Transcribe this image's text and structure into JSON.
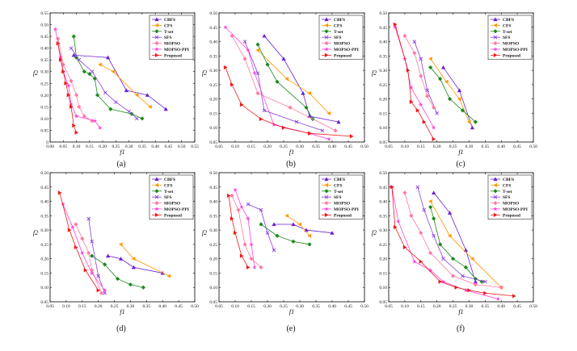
{
  "series_styles": [
    {
      "name": "CBFS",
      "color": "#6a1fd6",
      "marker": "triangle"
    },
    {
      "name": "CFS",
      "color": "#ff9900",
      "marker": "tri-left"
    },
    {
      "name": "T-set",
      "color": "#1a8a1a",
      "marker": "diamond"
    },
    {
      "name": "SFS",
      "color": "#8a3fe0",
      "marker": "x"
    },
    {
      "name": "MOPSO",
      "color": "#ff7aa0",
      "marker": "diamond"
    },
    {
      "name": "MOPSO-PPI",
      "color": "#ff44dd",
      "marker": "star"
    },
    {
      "name": "Proposed",
      "color": "#ee1a1a",
      "marker": "tri-right"
    }
  ],
  "chart_data": [
    {
      "type": "line",
      "panel_label": "(a)",
      "xlabel": "f1",
      "ylabel": "f2",
      "xlim": [
        0,
        0.55
      ],
      "ylim": [
        0,
        0.55
      ],
      "xticks": [
        "0.00",
        "0.05",
        "0.10",
        "0.15",
        "0.20",
        "0.25",
        "0.30",
        "0.35",
        "0.40",
        "0.45",
        "0.50",
        "0.55"
      ],
      "yticks": [
        "0",
        "0.05",
        "0.10",
        "0.15",
        "0.20",
        "0.25",
        "0.30",
        "0.35",
        "0.40",
        "0.45",
        "0.50",
        "0.55"
      ],
      "series": [
        {
          "name": "CBFS",
          "x": [
            0.09,
            0.22,
            0.29,
            0.37,
            0.44
          ],
          "y": [
            0.37,
            0.36,
            0.22,
            0.2,
            0.14
          ]
        },
        {
          "name": "CFS",
          "x": [
            0.19,
            0.24,
            0.33,
            0.38
          ],
          "y": [
            0.33,
            0.3,
            0.2,
            0.15
          ]
        },
        {
          "name": "T-set",
          "x": [
            0.09,
            0.1,
            0.13,
            0.15,
            0.17,
            0.18,
            0.23,
            0.31,
            0.35
          ],
          "y": [
            0.45,
            0.36,
            0.3,
            0.29,
            0.27,
            0.2,
            0.14,
            0.12,
            0.1
          ]
        },
        {
          "name": "SFS",
          "x": [
            0.08,
            0.11,
            0.16,
            0.21,
            0.25,
            0.3,
            0.33
          ],
          "y": [
            0.4,
            0.35,
            0.3,
            0.21,
            0.17,
            0.13,
            0.1
          ]
        },
        {
          "name": "MOPSO",
          "x": [
            0.03,
            0.05,
            0.08,
            0.1,
            0.11,
            0.13,
            0.16
          ],
          "y": [
            0.44,
            0.33,
            0.26,
            0.2,
            0.15,
            0.11,
            0.09
          ]
        },
        {
          "name": "MOPSO-PPI",
          "x": [
            0.02,
            0.04,
            0.05,
            0.07,
            0.08,
            0.1,
            0.17,
            0.19
          ],
          "y": [
            0.48,
            0.36,
            0.3,
            0.24,
            0.16,
            0.11,
            0.09,
            0.06
          ]
        },
        {
          "name": "Proposed",
          "x": [
            0.03,
            0.04,
            0.05,
            0.06,
            0.07,
            0.08,
            0.09,
            0.1
          ],
          "y": [
            0.42,
            0.35,
            0.3,
            0.25,
            0.2,
            0.15,
            0.07,
            0.04
          ]
        }
      ]
    },
    {
      "type": "line",
      "panel_label": "(b)",
      "xlabel": "f1",
      "ylabel": "f2",
      "xlim": [
        0.05,
        0.5
      ],
      "ylim": [
        0.05,
        0.5
      ],
      "xticks": [
        "0.05",
        "0.10",
        "0.15",
        "0.20",
        "0.25",
        "0.30",
        "0.35",
        "0.40",
        "0.45",
        "0.50"
      ],
      "yticks": [
        "0.05",
        "0.10",
        "0.15",
        "0.20",
        "0.25",
        "0.30",
        "0.35",
        "0.40",
        "0.45",
        "0.50"
      ],
      "series": [
        {
          "name": "CBFS",
          "x": [
            0.19,
            0.25,
            0.31,
            0.33,
            0.42
          ],
          "y": [
            0.42,
            0.34,
            0.22,
            0.14,
            0.12
          ]
        },
        {
          "name": "CFS",
          "x": [
            0.17,
            0.26,
            0.33,
            0.39
          ],
          "y": [
            0.37,
            0.27,
            0.22,
            0.15
          ]
        },
        {
          "name": "T-set",
          "x": [
            0.17,
            0.2,
            0.23,
            0.32,
            0.34
          ],
          "y": [
            0.39,
            0.32,
            0.26,
            0.17,
            0.13
          ]
        },
        {
          "name": "SFS",
          "x": [
            0.13,
            0.17,
            0.19,
            0.29,
            0.37
          ],
          "y": [
            0.4,
            0.29,
            0.16,
            0.12,
            0.09
          ]
        },
        {
          "name": "MOPSO",
          "x": [
            0.09,
            0.13,
            0.17,
            0.27,
            0.41
          ],
          "y": [
            0.42,
            0.34,
            0.22,
            0.17,
            0.09
          ]
        },
        {
          "name": "MOPSO-PPI",
          "x": [
            0.07,
            0.14,
            0.16,
            0.22,
            0.33,
            0.39
          ],
          "y": [
            0.45,
            0.37,
            0.29,
            0.11,
            0.08,
            0.06
          ]
        },
        {
          "name": "Proposed",
          "x": [
            0.07,
            0.09,
            0.12,
            0.18,
            0.25,
            0.33,
            0.46
          ],
          "y": [
            0.31,
            0.25,
            0.18,
            0.13,
            0.1,
            0.08,
            0.07
          ]
        }
      ]
    },
    {
      "type": "line",
      "panel_label": "(c)",
      "xlabel": "f1",
      "ylabel": "f2",
      "xlim": [
        0.05,
        0.5
      ],
      "ylim": [
        0.05,
        0.5
      ],
      "xticks": [
        "0.05",
        "0.10",
        "0.15",
        "0.20",
        "0.25",
        "0.30",
        "0.35",
        "0.40",
        "0.45",
        "0.50"
      ],
      "yticks": [
        "0.05",
        "0.10",
        "0.15",
        "0.20",
        "0.25",
        "0.30",
        "0.35",
        "0.40",
        "0.45",
        "0.50"
      ],
      "series": [
        {
          "name": "CBFS",
          "x": [
            0.22,
            0.27,
            0.31
          ],
          "y": [
            0.31,
            0.23,
            0.1
          ]
        },
        {
          "name": "CFS",
          "x": [
            0.18,
            0.23,
            0.27,
            0.3
          ],
          "y": [
            0.34,
            0.26,
            0.2,
            0.12
          ]
        },
        {
          "name": "T-set",
          "x": [
            0.18,
            0.21,
            0.24,
            0.28,
            0.32
          ],
          "y": [
            0.31,
            0.27,
            0.2,
            0.16,
            0.12
          ]
        },
        {
          "name": "SFS",
          "x": [
            0.13,
            0.15,
            0.17,
            0.2
          ],
          "y": [
            0.4,
            0.34,
            0.23,
            0.15
          ]
        },
        {
          "name": "MOPSO",
          "x": [
            0.1,
            0.13,
            0.15,
            0.17,
            0.19
          ],
          "y": [
            0.42,
            0.36,
            0.28,
            0.21,
            0.17
          ]
        },
        {
          "name": "MOPSO-PPI",
          "x": [
            0.07,
            0.1,
            0.12,
            0.15,
            0.19
          ],
          "y": [
            0.45,
            0.34,
            0.24,
            0.18,
            0.1
          ]
        },
        {
          "name": "Proposed",
          "x": [
            0.07,
            0.11,
            0.12,
            0.14,
            0.16,
            0.19
          ],
          "y": [
            0.46,
            0.3,
            0.19,
            0.16,
            0.12,
            0.06
          ]
        }
      ]
    },
    {
      "type": "line",
      "panel_label": "(d)",
      "xlabel": "f1",
      "ylabel": "f2",
      "xlim": [
        0.05,
        0.5
      ],
      "ylim": [
        0.05,
        0.5
      ],
      "xticks": [
        "0.05",
        "0.10",
        "0.15",
        "0.20",
        "0.25",
        "0.30",
        "0.35",
        "0.40",
        "0.45",
        "0.50"
      ],
      "yticks": [
        "0.05",
        "0.10",
        "0.15",
        "0.20",
        "0.25",
        "0.30",
        "0.35",
        "0.40",
        "0.45",
        "0.50"
      ],
      "series": [
        {
          "name": "CBFS",
          "x": [
            0.23,
            0.27,
            0.31,
            0.4
          ],
          "y": [
            0.21,
            0.2,
            0.17,
            0.15
          ]
        },
        {
          "name": "CFS",
          "x": [
            0.27,
            0.31,
            0.42
          ],
          "y": [
            0.25,
            0.2,
            0.14
          ]
        },
        {
          "name": "T-set",
          "x": [
            0.18,
            0.22,
            0.26,
            0.3,
            0.34
          ],
          "y": [
            0.21,
            0.18,
            0.13,
            0.11,
            0.1
          ]
        },
        {
          "name": "SFS",
          "x": [
            0.17,
            0.18,
            0.2,
            0.22
          ],
          "y": [
            0.34,
            0.26,
            0.14,
            0.08
          ]
        },
        {
          "name": "MOPSO",
          "x": [
            0.13,
            0.15,
            0.17,
            0.18,
            0.21
          ],
          "y": [
            0.32,
            0.27,
            0.22,
            0.16,
            0.08
          ]
        },
        {
          "name": "MOPSO-PPI",
          "x": [
            0.09,
            0.12,
            0.15,
            0.18,
            0.22
          ],
          "y": [
            0.39,
            0.31,
            0.22,
            0.15,
            0.09
          ]
        },
        {
          "name": "Proposed",
          "x": [
            0.08,
            0.11,
            0.13,
            0.16,
            0.2
          ],
          "y": [
            0.43,
            0.3,
            0.24,
            0.16,
            0.09
          ]
        }
      ]
    },
    {
      "type": "line",
      "panel_label": "(e)",
      "xlabel": "f1",
      "ylabel": "f2",
      "xlim": [
        0.05,
        0.5
      ],
      "ylim": [
        0.05,
        0.5
      ],
      "xticks": [
        "0.05",
        "0.10",
        "0.15",
        "0.20",
        "0.25",
        "0.30",
        "0.35",
        "0.40",
        "0.45",
        "0.50"
      ],
      "yticks": [
        "0.05",
        "0.10",
        "0.15",
        "0.20",
        "0.25",
        "0.30",
        "0.35",
        "0.40",
        "0.45",
        "0.50"
      ],
      "series": [
        {
          "name": "CBFS",
          "x": [
            0.22,
            0.28,
            0.32,
            0.4
          ],
          "y": [
            0.32,
            0.32,
            0.3,
            0.29
          ]
        },
        {
          "name": "CFS",
          "x": [
            0.26,
            0.3,
            0.33
          ],
          "y": [
            0.35,
            0.32,
            0.28
          ]
        },
        {
          "name": "T-set",
          "x": [
            0.18,
            0.23,
            0.28,
            0.33
          ],
          "y": [
            0.32,
            0.28,
            0.26,
            0.25
          ]
        },
        {
          "name": "SFS",
          "x": [
            0.14,
            0.18,
            0.2,
            0.22
          ],
          "y": [
            0.39,
            0.37,
            0.29,
            0.23
          ]
        },
        {
          "name": "MOPSO",
          "x": [
            0.09,
            0.11,
            0.13,
            0.15,
            0.18
          ],
          "y": [
            0.42,
            0.37,
            0.25,
            0.2,
            0.17
          ]
        },
        {
          "name": "MOPSO-PPI",
          "x": [
            0.1,
            0.12,
            0.14,
            0.15,
            0.16
          ],
          "y": [
            0.44,
            0.38,
            0.34,
            0.25,
            0.17
          ]
        },
        {
          "name": "Proposed",
          "x": [
            0.08,
            0.09,
            0.1,
            0.12,
            0.14
          ],
          "y": [
            0.42,
            0.34,
            0.29,
            0.21,
            0.17
          ]
        }
      ]
    },
    {
      "type": "line",
      "panel_label": "(f)",
      "xlabel": "f1",
      "ylabel": "f2",
      "xlim": [
        0.05,
        0.5
      ],
      "ylim": [
        0.05,
        0.5
      ],
      "xticks": [
        "0.05",
        "0.10",
        "0.15",
        "0.20",
        "0.25",
        "0.30",
        "0.35",
        "0.40",
        "0.45",
        "0.50"
      ],
      "yticks": [
        "0.05",
        "0.10",
        "0.15",
        "0.20",
        "0.25",
        "0.30",
        "0.35",
        "0.40",
        "0.45",
        "0.50"
      ],
      "series": [
        {
          "name": "CBFS",
          "x": [
            0.19,
            0.24,
            0.29,
            0.32
          ],
          "y": [
            0.43,
            0.36,
            0.23,
            0.12
          ]
        },
        {
          "name": "CFS",
          "x": [
            0.18,
            0.24,
            0.31,
            0.4
          ],
          "y": [
            0.4,
            0.28,
            0.2,
            0.1
          ]
        },
        {
          "name": "T-set",
          "x": [
            0.18,
            0.19,
            0.21,
            0.25,
            0.29,
            0.32,
            0.34
          ],
          "y": [
            0.38,
            0.34,
            0.25,
            0.2,
            0.17,
            0.13,
            0.12
          ]
        },
        {
          "name": "SFS",
          "x": [
            0.14,
            0.16,
            0.19,
            0.22,
            0.28,
            0.35
          ],
          "y": [
            0.45,
            0.37,
            0.28,
            0.2,
            0.14,
            0.12
          ]
        },
        {
          "name": "MOPSO",
          "x": [
            0.1,
            0.12,
            0.15,
            0.18,
            0.25,
            0.32,
            0.4
          ],
          "y": [
            0.43,
            0.35,
            0.29,
            0.22,
            0.14,
            0.11,
            0.1
          ]
        },
        {
          "name": "MOPSO-PPI",
          "x": [
            0.06,
            0.08,
            0.13,
            0.18,
            0.22,
            0.29,
            0.39
          ],
          "y": [
            0.45,
            0.33,
            0.19,
            0.16,
            0.12,
            0.09,
            0.06
          ]
        },
        {
          "name": "Proposed",
          "x": [
            0.06,
            0.07,
            0.1,
            0.15,
            0.21,
            0.26,
            0.3,
            0.35,
            0.44
          ],
          "y": [
            0.45,
            0.31,
            0.24,
            0.19,
            0.12,
            0.1,
            0.09,
            0.08,
            0.07
          ]
        }
      ]
    }
  ]
}
